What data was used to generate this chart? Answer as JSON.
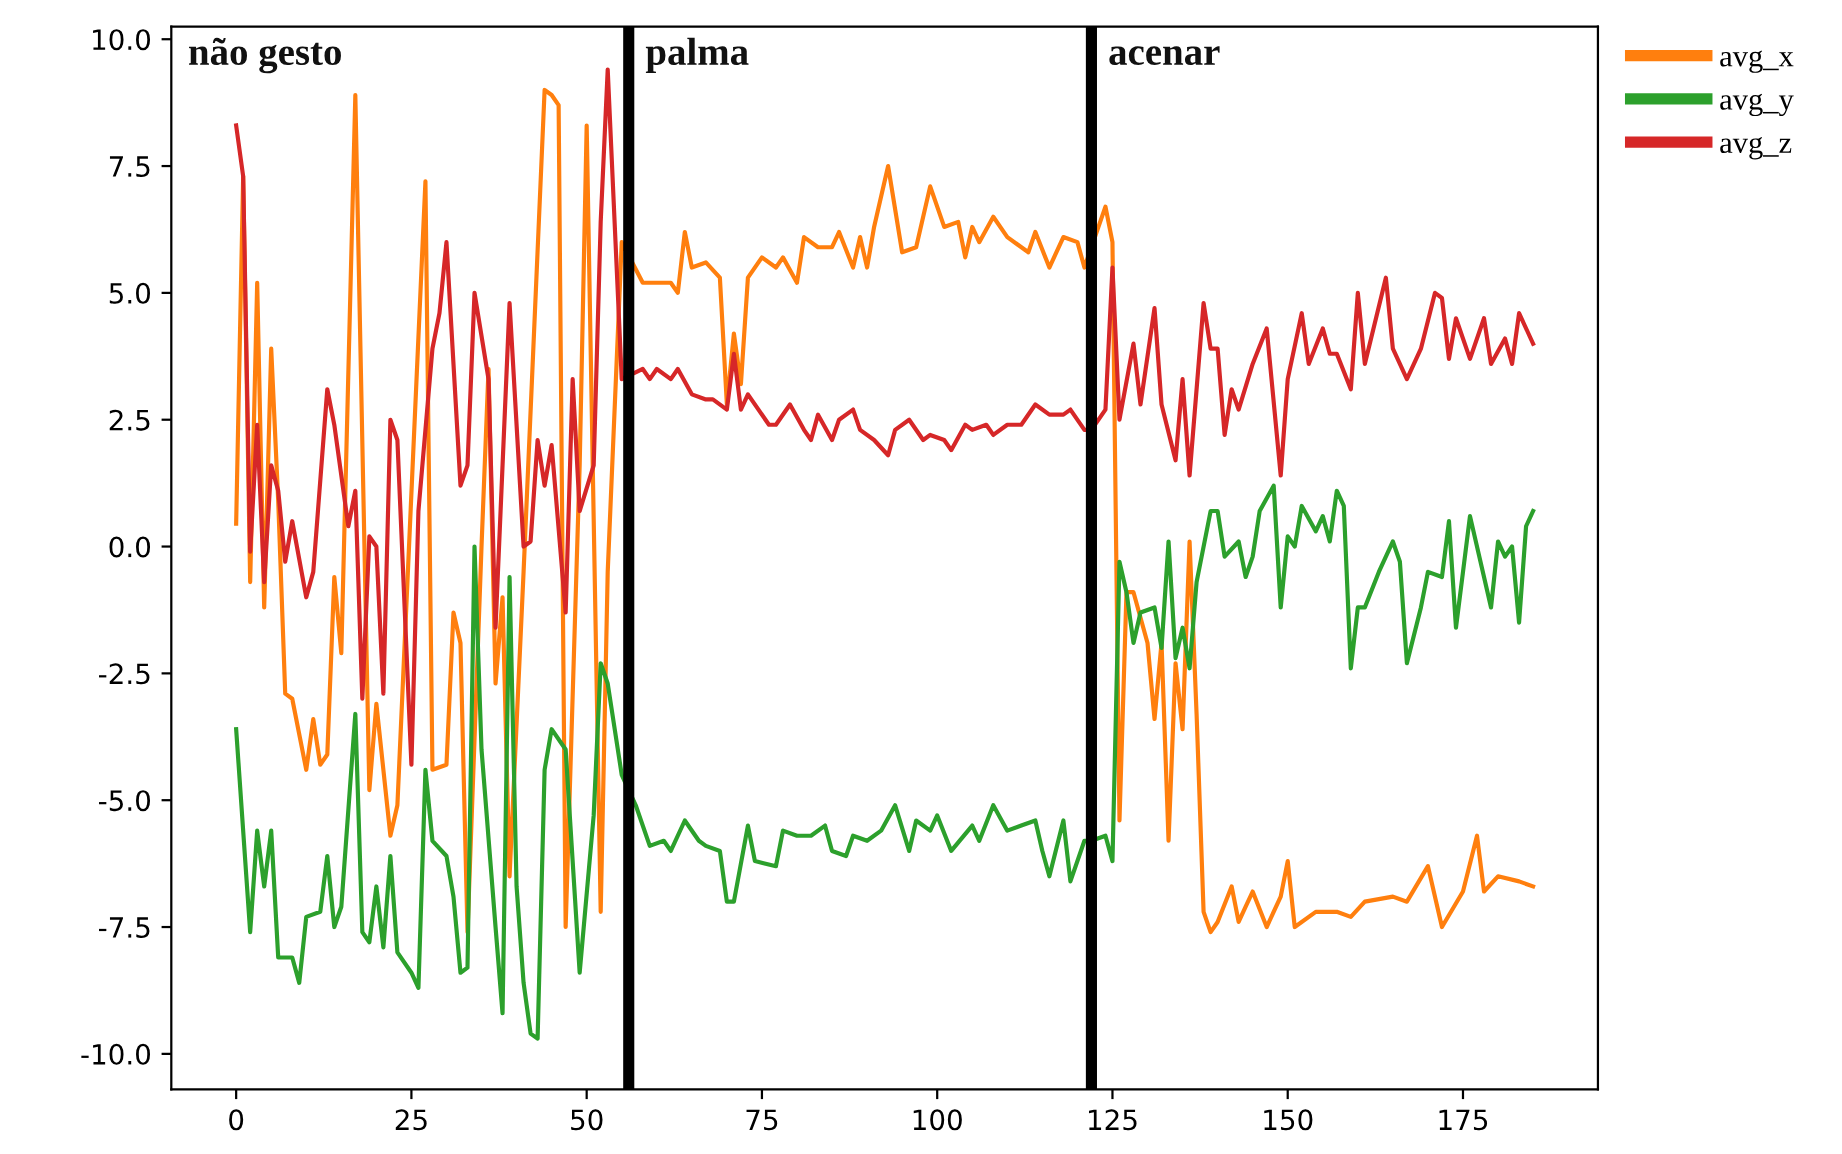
{
  "chart_data": {
    "type": "line",
    "annotations": [
      "não gesto",
      "palma",
      "acenar"
    ],
    "xlim": [
      -9.25,
      194.25
    ],
    "ylim": [
      -10.7,
      10.25
    ],
    "xticks": [
      0,
      25,
      50,
      75,
      100,
      125,
      150,
      175
    ],
    "yticks": [
      {
        "value": -10,
        "label": "-10.0"
      },
      {
        "value": -7.5,
        "label": "-7.5"
      },
      {
        "value": -5,
        "label": "-5.0"
      },
      {
        "value": -2.5,
        "label": "-2.5"
      },
      {
        "value": 0,
        "label": "0.0"
      },
      {
        "value": 2.5,
        "label": "2.5"
      },
      {
        "value": 5,
        "label": "5.0"
      },
      {
        "value": 7.5,
        "label": "7.5"
      },
      {
        "value": 10,
        "label": "10.0"
      }
    ],
    "legend": "top right",
    "grid": false,
    "ref_lines": [
      {
        "axis": "x",
        "value": 56,
        "color": "#000000"
      },
      {
        "axis": "x",
        "value": 122,
        "color": "#000000"
      }
    ],
    "series": [
      {
        "name": "avg_x",
        "color": "#ff7f0e",
        "x": [
          0,
          1,
          2,
          3,
          4,
          5,
          6,
          7,
          8,
          10,
          11,
          12,
          13,
          14,
          15,
          17,
          19,
          20,
          22,
          23,
          27,
          28,
          30,
          31,
          32,
          33,
          35,
          36,
          37,
          38,
          39,
          41,
          44,
          45,
          46,
          47,
          49,
          50,
          52,
          53,
          55,
          58,
          60,
          62,
          63,
          64,
          65,
          67,
          69,
          70,
          71,
          72,
          73,
          75,
          77,
          78,
          80,
          81,
          83,
          85,
          86,
          88,
          89,
          90,
          91,
          93,
          95,
          97,
          99,
          101,
          103,
          104,
          105,
          106,
          108,
          110,
          113,
          114,
          116,
          118,
          120,
          121,
          124,
          125,
          126,
          127,
          128,
          130,
          131,
          132,
          133,
          134,
          135,
          136,
          137,
          138,
          139,
          140,
          142,
          143,
          144,
          145,
          147,
          149,
          150,
          151,
          154,
          157,
          159,
          161,
          165,
          167,
          170,
          172,
          175,
          177,
          178,
          180,
          183,
          185
        ],
        "values": [
          0.45,
          7.3,
          -0.7,
          5.2,
          -1.2,
          3.9,
          0.9,
          -2.9,
          -3.0,
          -4.4,
          -3.4,
          -4.3,
          -4.1,
          -0.6,
          -2.1,
          8.9,
          -4.8,
          -3.1,
          -5.7,
          -5.1,
          7.2,
          -4.4,
          -4.3,
          -1.3,
          -1.9,
          -7.6,
          0,
          3.5,
          -2.7,
          -1.0,
          -6.5,
          -0.5,
          9.0,
          8.9,
          8.7,
          -7.5,
          1.6,
          8.3,
          -7.2,
          -0.5,
          6.0,
          5.2,
          5.2,
          5.2,
          5.0,
          6.2,
          5.5,
          5.6,
          5.3,
          2.8,
          4.2,
          3.2,
          5.3,
          5.7,
          5.5,
          5.7,
          5.2,
          6.1,
          5.9,
          5.9,
          6.2,
          5.5,
          6.1,
          5.5,
          6.3,
          7.5,
          5.8,
          5.9,
          7.1,
          6.3,
          6.4,
          5.7,
          6.3,
          6.0,
          6.5,
          6.1,
          5.8,
          6.2,
          5.5,
          6.1,
          6.0,
          5.5,
          6.7,
          6.0,
          -5.4,
          -0.9,
          -0.9,
          -1.9,
          -3.4,
          -1.9,
          -5.8,
          -2.3,
          -3.6,
          0.1,
          -3.3,
          -7.2,
          -7.6,
          -7.4,
          -6.7,
          -7.4,
          -7.1,
          -6.8,
          -7.5,
          -6.9,
          -6.2,
          -7.5,
          -7.2,
          -7.2,
          -7.3,
          -7.0,
          -6.9,
          -7.0,
          -6.3,
          -7.5,
          -6.8,
          -5.7,
          -6.8,
          -6.5,
          -6.6,
          -6.7
        ]
      },
      {
        "name": "avg_y",
        "color": "#2ca02c",
        "x": [
          0,
          2,
          3,
          4,
          5,
          6,
          8,
          9,
          10,
          12,
          13,
          14,
          15,
          17,
          18,
          19,
          20,
          21,
          22,
          23,
          25,
          26,
          27,
          28,
          30,
          31,
          32,
          33,
          34,
          35,
          37,
          38,
          39,
          40,
          41,
          42,
          43,
          44,
          45,
          47,
          49,
          51,
          52,
          53,
          55,
          57,
          59,
          61,
          62,
          64,
          66,
          67,
          69,
          70,
          71,
          73,
          74,
          77,
          78,
          80,
          82,
          84,
          85,
          87,
          88,
          90,
          92,
          94,
          96,
          97,
          99,
          100,
          102,
          105,
          106,
          108,
          110,
          112,
          114,
          115,
          116,
          118,
          119,
          121,
          122,
          124,
          125,
          126,
          127,
          128,
          129,
          131,
          132,
          133,
          134,
          135,
          136,
          137,
          139,
          140,
          141,
          143,
          144,
          145,
          146,
          148,
          149,
          150,
          151,
          152,
          154,
          155,
          156,
          157,
          158,
          159,
          160,
          161,
          163,
          165,
          166,
          167,
          169,
          170,
          172,
          173,
          174,
          175,
          176,
          178,
          179,
          180,
          181,
          182,
          183,
          184,
          185
        ],
        "values": [
          -3.6,
          -7.6,
          -5.6,
          -6.7,
          -5.6,
          -8.1,
          -8.1,
          -8.6,
          -7.3,
          -7.2,
          -6.1,
          -7.5,
          -7.1,
          -3.3,
          -7.6,
          -7.8,
          -6.7,
          -7.9,
          -6.1,
          -8.0,
          -8.4,
          -8.7,
          -4.4,
          -5.8,
          -6.1,
          -6.9,
          -8.4,
          -8.3,
          0,
          -4.0,
          -7.5,
          -9.2,
          -0.6,
          -6.7,
          -8.6,
          -9.6,
          -9.7,
          -4.4,
          -3.6,
          -4.0,
          -8.4,
          -5.3,
          -2.3,
          -2.7,
          -4.5,
          -5.1,
          -5.9,
          -5.8,
          -6.0,
          -5.4,
          -5.8,
          -5.9,
          -6.0,
          -7.0,
          -7.0,
          -5.5,
          -6.2,
          -6.3,
          -5.6,
          -5.7,
          -5.7,
          -5.5,
          -6.0,
          -6.1,
          -5.7,
          -5.8,
          -5.6,
          -5.1,
          -6.0,
          -5.4,
          -5.6,
          -5.3,
          -6.0,
          -5.5,
          -5.8,
          -5.1,
          -5.6,
          -5.5,
          -5.4,
          -6.0,
          -6.5,
          -5.4,
          -6.6,
          -5.8,
          -5.8,
          -5.7,
          -6.2,
          -0.3,
          -0.9,
          -1.9,
          -1.3,
          -1.2,
          -2.0,
          0.1,
          -2.2,
          -1.6,
          -2.4,
          -0.7,
          0.7,
          0.7,
          -0.2,
          0.1,
          -0.6,
          -0.2,
          0.7,
          1.2,
          -1.2,
          0.2,
          0,
          0.8,
          0.3,
          0.6,
          0.1,
          1.1,
          0.8,
          -2.4,
          -1.2,
          -1.2,
          -0.5,
          0.1,
          -0.3,
          -2.3,
          -1.2,
          -0.5,
          -0.6,
          0.5,
          -1.6,
          -0.5,
          0.6,
          -0.6,
          -1.2,
          0.1,
          -0.2,
          0,
          -1.5,
          0.4,
          0.7
        ]
      },
      {
        "name": "avg_z",
        "color": "#d62728",
        "x": [
          0,
          1,
          2,
          3,
          4,
          5,
          6,
          7,
          8,
          10,
          11,
          13,
          14,
          16,
          17,
          18,
          19,
          20,
          21,
          22,
          23,
          25,
          26,
          28,
          29,
          30,
          32,
          33,
          34,
          36,
          37,
          39,
          41,
          42,
          43,
          44,
          45,
          47,
          48,
          49,
          51,
          52,
          53,
          55,
          58,
          59,
          60,
          62,
          63,
          65,
          67,
          68,
          70,
          71,
          72,
          73,
          76,
          77,
          79,
          81,
          82,
          83,
          85,
          86,
          88,
          89,
          91,
          93,
          94,
          96,
          98,
          99,
          101,
          102,
          104,
          105,
          107,
          108,
          110,
          112,
          114,
          116,
          118,
          119,
          121,
          122,
          124,
          125,
          126,
          128,
          129,
          131,
          132,
          134,
          135,
          136,
          138,
          139,
          140,
          141,
          142,
          143,
          145,
          147,
          149,
          150,
          152,
          153,
          155,
          156,
          157,
          159,
          160,
          161,
          164,
          165,
          167,
          169,
          171,
          172,
          173,
          174,
          176,
          178,
          179,
          181,
          182,
          183,
          185
        ],
        "values": [
          8.3,
          7.3,
          -0.1,
          2.4,
          -0.7,
          1.6,
          1.1,
          -0.3,
          0.5,
          -1.0,
          -0.5,
          3.1,
          2.4,
          0.4,
          1.1,
          -3.0,
          0.2,
          0,
          -2.9,
          2.5,
          2.1,
          -4.3,
          0.7,
          3.9,
          4.6,
          6.0,
          1.2,
          1.6,
          5.0,
          3.3,
          -1.6,
          4.8,
          0,
          0.1,
          2.1,
          1.2,
          2.0,
          -1.3,
          3.3,
          0.7,
          1.6,
          6.4,
          9.4,
          3.3,
          3.5,
          3.3,
          3.5,
          3.3,
          3.5,
          3.0,
          2.9,
          2.9,
          2.7,
          3.8,
          2.7,
          3.0,
          2.4,
          2.4,
          2.8,
          2.3,
          2.1,
          2.6,
          2.1,
          2.5,
          2.7,
          2.3,
          2.1,
          1.8,
          2.3,
          2.5,
          2.1,
          2.2,
          2.1,
          1.9,
          2.4,
          2.3,
          2.4,
          2.2,
          2.4,
          2.4,
          2.8,
          2.6,
          2.6,
          2.7,
          2.3,
          2.3,
          2.7,
          5.5,
          2.5,
          4.0,
          2.8,
          4.7,
          2.8,
          1.7,
          3.3,
          1.4,
          4.8,
          3.9,
          3.9,
          2.2,
          3.1,
          2.7,
          3.6,
          4.3,
          1.4,
          3.3,
          4.6,
          3.6,
          4.3,
          3.8,
          3.8,
          3.1,
          5.0,
          3.6,
          5.3,
          3.9,
          3.3,
          3.9,
          5.0,
          4.9,
          3.7,
          4.5,
          3.7,
          4.5,
          3.6,
          4.1,
          3.6,
          4.6,
          4.0
        ]
      }
    ]
  }
}
